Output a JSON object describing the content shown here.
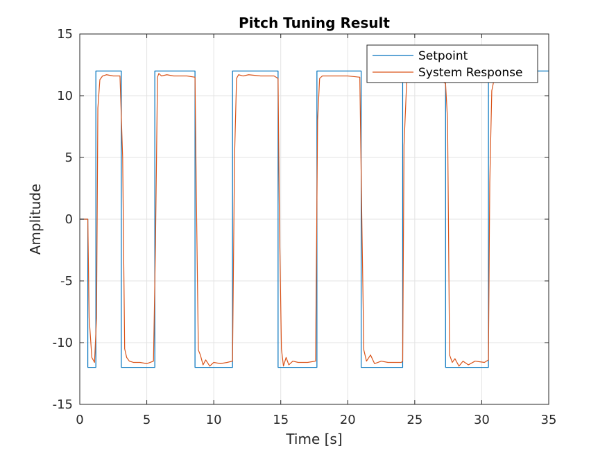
{
  "chart_data": {
    "type": "line",
    "title": "Pitch Tuning Result",
    "xlabel": "Time [s]",
    "ylabel": "Amplitude",
    "xlim": [
      0,
      35
    ],
    "ylim": [
      -15,
      15
    ],
    "xticks": [
      0,
      5,
      10,
      15,
      20,
      25,
      30,
      35
    ],
    "yticks": [
      -15,
      -10,
      -5,
      0,
      5,
      10,
      15
    ],
    "grid": true,
    "legend_position": "top-right",
    "series": [
      {
        "name": "Setpoint",
        "color": "#0072BD",
        "x": [
          0,
          0.6,
          0.6,
          1.2,
          1.2,
          3.1,
          3.1,
          5.6,
          5.6,
          8.6,
          8.6,
          11.4,
          11.4,
          14.8,
          14.8,
          17.7,
          17.7,
          21.0,
          21.0,
          24.1,
          24.1,
          27.3,
          27.3,
          30.5,
          30.5,
          35
        ],
        "y": [
          0,
          0,
          -12,
          -12,
          12,
          12,
          -12,
          -12,
          12,
          12,
          -12,
          -12,
          12,
          12,
          -12,
          -12,
          12,
          12,
          -12,
          -12,
          12,
          12,
          -12,
          -12,
          12,
          12
        ]
      },
      {
        "name": "System Response",
        "color": "#D95319",
        "x": [
          0,
          0.6,
          0.7,
          0.9,
          1.1,
          1.25,
          1.35,
          1.5,
          1.7,
          2.0,
          2.5,
          3.0,
          3.2,
          3.35,
          3.5,
          3.7,
          4.0,
          4.5,
          5.0,
          5.5,
          5.65,
          5.8,
          5.9,
          6.1,
          6.5,
          7.0,
          8.0,
          8.6,
          8.7,
          8.85,
          9.0,
          9.2,
          9.4,
          9.7,
          10.0,
          10.5,
          11.0,
          11.4,
          11.55,
          11.7,
          11.85,
          12.2,
          12.6,
          13.5,
          14.5,
          14.8,
          14.9,
          15.05,
          15.2,
          15.4,
          15.6,
          15.9,
          16.3,
          17.0,
          17.6,
          17.75,
          17.9,
          18.1,
          18.4,
          19.0,
          20.0,
          20.9,
          21.05,
          21.2,
          21.4,
          21.7,
          22.0,
          22.5,
          23.0,
          24.0,
          24.1,
          24.2,
          24.4,
          24.6,
          27.3,
          27.45,
          27.6,
          27.8,
          28.0,
          28.3,
          28.6,
          29.0,
          29.5,
          30.2,
          30.5,
          30.6,
          30.75,
          30.9,
          31.0
        ],
        "y": [
          0,
          0,
          -8,
          -11.2,
          -11.6,
          -8,
          9,
          11.3,
          11.6,
          11.7,
          11.6,
          11.6,
          5,
          -10.5,
          -11.2,
          -11.5,
          -11.6,
          -11.6,
          -11.7,
          -11.5,
          -2,
          11.5,
          11.8,
          11.6,
          11.7,
          11.6,
          11.6,
          11.5,
          2,
          -10.6,
          -11.0,
          -11.8,
          -11.4,
          -11.9,
          -11.6,
          -11.7,
          -11.6,
          -11.5,
          5,
          11.4,
          11.7,
          11.6,
          11.7,
          11.6,
          11.6,
          11.4,
          0,
          -10.5,
          -11.9,
          -11.2,
          -11.8,
          -11.5,
          -11.6,
          -11.6,
          -11.5,
          8,
          11.4,
          11.6,
          11.6,
          11.6,
          11.6,
          11.5,
          0,
          -10.6,
          -11.5,
          -11.0,
          -11.7,
          -11.5,
          -11.6,
          -11.6,
          -11.5,
          6,
          11.2,
          12.3,
          11.0,
          8,
          -11.0,
          -11.6,
          -11.3,
          -11.9,
          -11.5,
          -11.8,
          -11.5,
          -11.6,
          -11.4,
          3,
          10.4,
          11.2,
          11.5
        ]
      }
    ]
  }
}
